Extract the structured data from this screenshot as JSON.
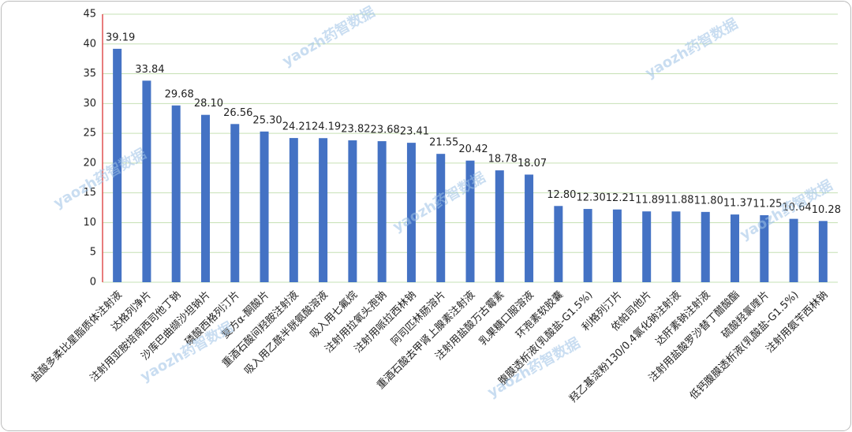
{
  "chart_data": {
    "type": "bar",
    "categories": [
      "盐酸多柔比星脂质体注射液",
      "达格列净片",
      "注射用亚胺培南西司他丁钠",
      "沙库巴曲缬沙坦钠片",
      "磷酸西格列汀片",
      "复方α-酮酸片",
      "重酒石酸间羟胺注射液",
      "吸入用乙酰半胱氨酸溶液",
      "吸入用七氟烷",
      "注射用拉氧头孢钠",
      "注射用哌拉西林钠",
      "阿司匹林肠溶片",
      "重酒石酸去甲肾上腺素注射液",
      "注射用盐酸万古霉素",
      "乳果糖口服溶液",
      "环孢素软胶囊",
      "腹膜透析液(乳酸盐-G1.5%)",
      "利格列汀片",
      "依帕司他片",
      "羟乙基淀粉130/0.4氯化钠注射液",
      "达肝素钠注射液",
      "注射用盐酸罗沙替丁醋酸酯",
      "硫酸羟氯喹片",
      "低钙腹膜透析液(乳酸盐-G1.5%)",
      "注射用氨苄西林钠"
    ],
    "values": [
      39.19,
      33.84,
      29.68,
      28.1,
      26.56,
      25.3,
      24.21,
      24.19,
      23.82,
      23.68,
      23.41,
      21.55,
      20.42,
      18.78,
      18.07,
      12.8,
      12.3,
      12.21,
      11.89,
      11.88,
      11.8,
      11.37,
      11.25,
      10.64,
      10.28
    ],
    "value_labels": [
      "39.19",
      "33.84",
      "29.68",
      "28.10",
      "26.56",
      "25.30",
      "24.21",
      "24.19",
      "23.82",
      "23.68",
      "23.41",
      "21.55",
      "20.42",
      "18.78",
      "18.07",
      "12.80",
      "12.30",
      "12.21",
      "11.89",
      "11.88",
      "11.80",
      "11.37",
      "11.25",
      "10.64",
      "10.28"
    ],
    "color": "#4472c4",
    "ylim": [
      0,
      45
    ],
    "yticks": [
      0,
      5,
      10,
      15,
      20,
      25,
      30,
      35,
      40,
      45
    ],
    "grid": true,
    "watermark": "yaozh药智数据"
  }
}
